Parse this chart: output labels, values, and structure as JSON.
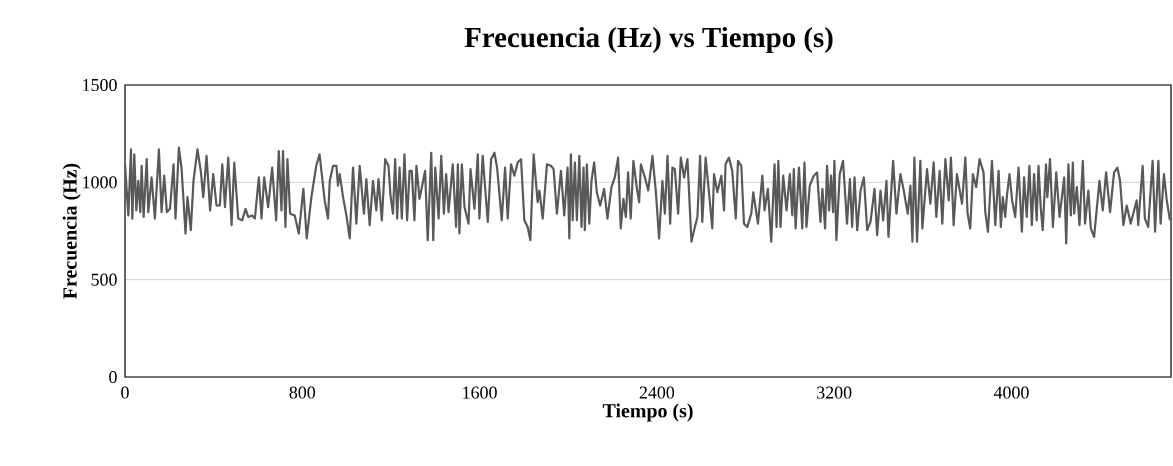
{
  "chart_data": {
    "type": "line",
    "title": "Frecuencia (Hz) vs Tiempo (s)",
    "xlabel": "Tiempo (s)",
    "ylabel": "Frecuencia (Hz)",
    "xlim": [
      0,
      4720
    ],
    "ylim": [
      0,
      1500
    ],
    "xticks": [
      0,
      800,
      1600,
      2400,
      3200,
      4000
    ],
    "yticks": [
      0,
      500,
      1000,
      1500
    ],
    "grid": "y",
    "legend": false,
    "marker": "none",
    "line_style": "solid",
    "series": [
      {
        "color": "#595959",
        "x": [
          0,
          15,
          27,
          33,
          42,
          51,
          60,
          69,
          75,
          84,
          98,
          105,
          120,
          135,
          153,
          165,
          177,
          189,
          203,
          219,
          228,
          243,
          255,
          273,
          282,
          297,
          309,
          327,
          342,
          353,
          368,
          384,
          398,
          413,
          428,
          439,
          451,
          466,
          481,
          493,
          511,
          529,
          544,
          556,
          574,
          586,
          604,
          616,
          628,
          646,
          664,
          682,
          694,
          706,
          713,
          724,
          733,
          745,
          766,
          784,
          805,
          820,
          841,
          863,
          878,
          901,
          916,
          924,
          939,
          954,
          961,
          969,
          984,
          999,
          1014,
          1029,
          1044,
          1059,
          1078,
          1089,
          1104,
          1119,
          1134,
          1144,
          1159,
          1174,
          1189,
          1198,
          1209,
          1219,
          1228,
          1239,
          1249,
          1261,
          1273,
          1284,
          1294,
          1306,
          1315,
          1329,
          1344,
          1354,
          1366,
          1382,
          1391,
          1400,
          1415,
          1427,
          1439,
          1449,
          1460,
          1479,
          1494,
          1502,
          1509,
          1520,
          1532,
          1550,
          1559,
          1577,
          1592,
          1599,
          1614,
          1637,
          1652,
          1667,
          1679,
          1700,
          1715,
          1727,
          1742,
          1757,
          1772,
          1787,
          1802,
          1817,
          1829,
          1844,
          1862,
          1870,
          1885,
          1904,
          1922,
          1934,
          1949,
          1967,
          1982,
          1997,
          2005,
          2012,
          2020,
          2030,
          2039,
          2050,
          2060,
          2069,
          2075,
          2084,
          2095,
          2105,
          2117,
          2129,
          2144,
          2162,
          2177,
          2195,
          2210,
          2225,
          2237,
          2249,
          2260,
          2270,
          2282,
          2294,
          2310,
          2320,
          2328,
          2346,
          2361,
          2380,
          2395,
          2410,
          2425,
          2436,
          2448,
          2460,
          2470,
          2481,
          2496,
          2508,
          2523,
          2538,
          2556,
          2568,
          2583,
          2595,
          2605,
          2620,
          2635,
          2650,
          2658,
          2673,
          2691,
          2703,
          2710,
          2725,
          2740,
          2756,
          2766,
          2781,
          2793,
          2808,
          2826,
          2835,
          2856,
          2876,
          2886,
          2901,
          2916,
          2931,
          2940,
          2948,
          2958,
          2970,
          2985,
          3000,
          3011,
          3018,
          3026,
          3041,
          3056,
          3066,
          3075,
          3090,
          3108,
          3123,
          3138,
          3147,
          3159,
          3168,
          3177,
          3186,
          3195,
          3201,
          3210,
          3225,
          3240,
          3258,
          3271,
          3281,
          3292,
          3304,
          3319,
          3334,
          3349,
          3364,
          3382,
          3394,
          3409,
          3421,
          3436,
          3445,
          3466,
          3481,
          3499,
          3514,
          3532,
          3544,
          3553,
          3562,
          3574,
          3589,
          3598,
          3619,
          3634,
          3649,
          3661,
          3676,
          3688,
          3702,
          3717,
          3727,
          3739,
          3754,
          3777,
          3792,
          3802,
          3814,
          3826,
          3841,
          3856,
          3874,
          3882,
          3894,
          3912,
          3927,
          3942,
          3952,
          3961,
          3972,
          3979,
          3991,
          4003,
          4017,
          4032,
          4047,
          4057,
          4069,
          4081,
          4092,
          4102,
          4114,
          4122,
          4132,
          4141,
          4156,
          4162,
          4174,
          4187,
          4202,
          4217,
          4238,
          4247,
          4257,
          4268,
          4277,
          4283,
          4295,
          4307,
          4322,
          4332,
          4347,
          4358,
          4373,
          4397,
          4412,
          4427,
          4445,
          4463,
          4478,
          4490,
          4505,
          4520,
          4538,
          4565,
          4572,
          4592,
          4602,
          4617,
          4637,
          4648,
          4663,
          4673,
          4688,
          4700,
          4715
        ],
        "values": [
          1093,
          830,
          1169,
          813,
          1144,
          856,
          1008,
          847,
          1085,
          822,
          1119,
          847,
          1025,
          814,
          1169,
          847,
          1034,
          847,
          864,
          1093,
          814,
          1178,
          1076,
          737,
          924,
          754,
          1008,
          1169,
          1059,
          924,
          1136,
          856,
          1042,
          881,
          881,
          1093,
          873,
          1127,
          780,
          1102,
          814,
          805,
          864,
          822,
          830,
          814,
          1025,
          814,
          1025,
          873,
          1076,
          805,
          1161,
          856,
          1161,
          771,
          1119,
          839,
          830,
          737,
          966,
          712,
          924,
          1085,
          1144,
          907,
          814,
          1008,
          1085,
          1085,
          983,
          1042,
          924,
          830,
          712,
          1076,
          788,
          1085,
          839,
          1017,
          780,
          1008,
          856,
          1017,
          805,
          1119,
          1085,
          932,
          839,
          1119,
          814,
          1076,
          814,
          1144,
          805,
          1059,
          1059,
          805,
          1085,
          915,
          1000,
          1059,
          703,
          1152,
          703,
          1076,
          814,
          1136,
          839,
          1042,
          847,
          1093,
          771,
          1093,
          737,
          1093,
          873,
          788,
          1068,
          864,
          1144,
          814,
          1136,
          797,
          1119,
          1152,
          1076,
          805,
          1076,
          814,
          1093,
          1034,
          1102,
          1119,
          805,
          771,
          703,
          1144,
          898,
          958,
          814,
          1093,
          1085,
          1068,
          839,
          1059,
          830,
          1076,
          712,
          1144,
          805,
          1102,
          805,
          1136,
          771,
          1076,
          754,
          1093,
          788,
          1008,
          1102,
          949,
          881,
          966,
          814,
          975,
          1025,
          1127,
          763,
          915,
          822,
          1051,
          814,
          1110,
          966,
          898,
          1093,
          1025,
          958,
          1136,
          958,
          712,
          1008,
          839,
          1136,
          788,
          1076,
          1068,
          839,
          1127,
          1025,
          1119,
          695,
          754,
          822,
          1136,
          797,
          1127,
          949,
          763,
          1042,
          949,
          1034,
          856,
          1093,
          1127,
          1059,
          814,
          1110,
          1085,
          788,
          771,
          839,
          949,
          788,
          1034,
          856,
          966,
          695,
          1093,
          771,
          1110,
          771,
          1034,
          856,
          1042,
          830,
          1068,
          763,
          1076,
          763,
          1102,
          771,
          983,
          1034,
          1051,
          797,
          966,
          763,
          1085,
          856,
          1034,
          847,
          1110,
          703,
          1042,
          1110,
          788,
          1017,
          771,
          1025,
          754,
          958,
          1025,
          754,
          797,
          966,
          729,
          958,
          805,
          1008,
          720,
          1110,
          839,
          1042,
          958,
          839,
          983,
          695,
          1127,
          695,
          1110,
          763,
          1068,
          890,
          1102,
          822,
          1059,
          788,
          1119,
          907,
          1127,
          780,
          1042,
          890,
          1127,
          839,
          763,
          1042,
          975,
          1119,
          1051,
          847,
          746,
          1110,
          780,
          1059,
          771,
          924,
          822,
          924,
          1042,
          907,
          822,
          1076,
          746,
          1025,
          822,
          1085,
          780,
          1042,
          805,
          1085,
          873,
          754,
          1093,
          924,
          1119,
          771,
          1051,
          822,
          1025,
          686,
          1093,
          830,
          1102,
          839,
          975,
          780,
          1110,
          788,
          958,
          763,
          720,
          1008,
          856,
          1051,
          847,
          1051,
          1076,
          1008,
          780,
          881,
          788,
          907,
          780,
          1085,
          814,
          771,
          1110,
          746,
          1110,
          788,
          1042,
          915,
          805
        ]
      }
    ]
  }
}
